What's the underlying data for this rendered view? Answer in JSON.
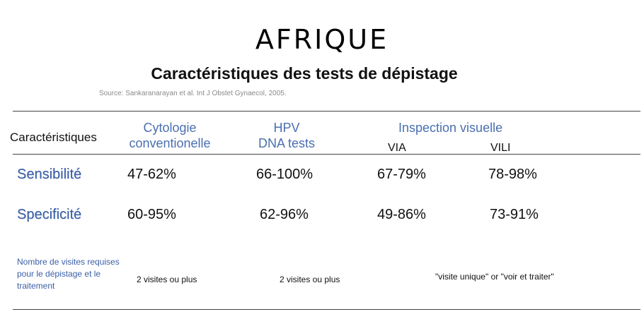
{
  "title": "AFRIQUE",
  "subtitle": "Caractéristiques des tests de dépistage",
  "source": "Source: Sankaranarayan et al. Int J Obstet Gynaecol, 2005.",
  "table": {
    "header": {
      "characteristic": "Caractéristiques",
      "cytology_line1": "Cytologie",
      "cytology_line2": "conventionelle",
      "hpv_line1": "HPV",
      "hpv_line2": "DNA tests",
      "visual": "Inspection visuelle",
      "via": "VIA",
      "vili": "VILI"
    },
    "rows": [
      {
        "label": "Sensibilité",
        "cytology": "47-62%",
        "hpv": "66-100%",
        "via": "67-79%",
        "vili": "78-98%"
      },
      {
        "label": "Specificité",
        "cytology": "60-95%",
        "hpv": "62-96%",
        "via": "49-86%",
        "vili": "73-91%"
      }
    ],
    "visits": {
      "label": "Nombre de visites requises pour le dépistage et le traitement",
      "cytology": "2 visites ou plus",
      "hpv": "2 visites ou plus",
      "visual": "\"visite unique\" or \"voir et traiter\""
    }
  },
  "colors": {
    "accent_blue": "#3b5fa6",
    "rule": "#444444"
  }
}
